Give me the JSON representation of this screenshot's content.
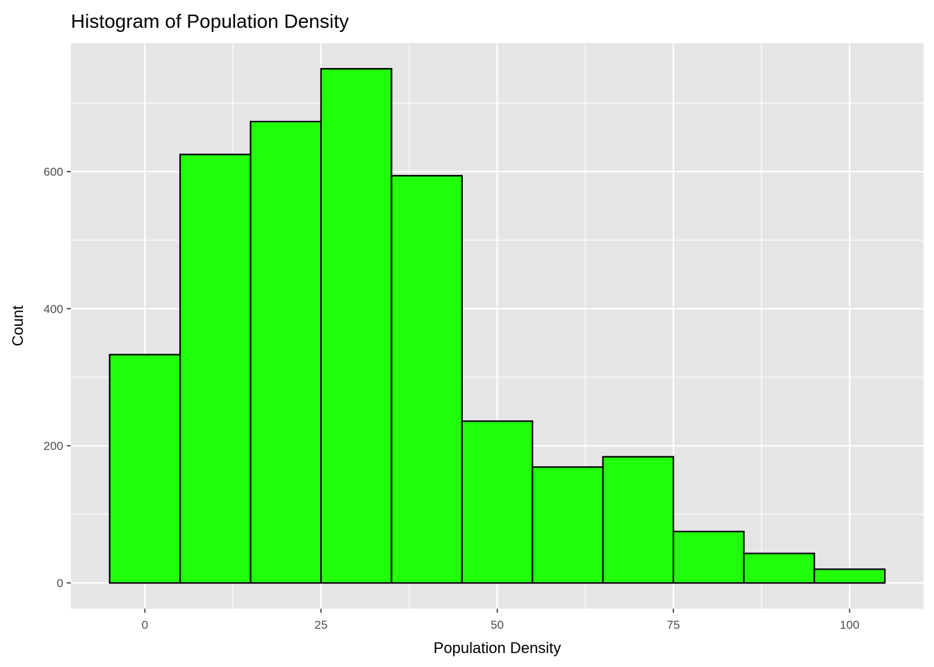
{
  "chart_data": {
    "type": "bar",
    "title": "Histogram of Population Density",
    "xlabel": "Population Density",
    "ylabel": "Count",
    "bins": [
      {
        "start": -5,
        "end": 5,
        "count": 333
      },
      {
        "start": 5,
        "end": 15,
        "count": 625
      },
      {
        "start": 15,
        "end": 25,
        "count": 673
      },
      {
        "start": 25,
        "end": 35,
        "count": 750
      },
      {
        "start": 35,
        "end": 45,
        "count": 594
      },
      {
        "start": 45,
        "end": 55,
        "count": 236
      },
      {
        "start": 55,
        "end": 65,
        "count": 169
      },
      {
        "start": 65,
        "end": 75,
        "count": 184
      },
      {
        "start": 75,
        "end": 85,
        "count": 75
      },
      {
        "start": 85,
        "end": 95,
        "count": 43
      },
      {
        "start": 95,
        "end": 105,
        "count": 20
      }
    ],
    "xlim": [
      -10.5,
      110.5
    ],
    "ylim": [
      -37.5,
      787.5
    ],
    "x_ticks": [
      0,
      25,
      50,
      75,
      100
    ],
    "y_ticks": [
      0,
      200,
      400,
      600
    ],
    "grid": true,
    "colors": {
      "bar_fill": "#22FF0B",
      "bar_stroke": "#000000",
      "panel_background": "#E5E5E5",
      "grid": "#FFFFFF"
    }
  }
}
